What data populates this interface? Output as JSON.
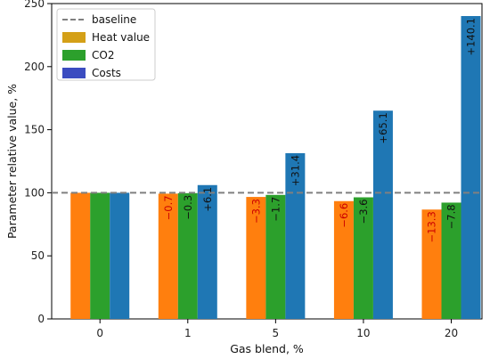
{
  "chart_data": {
    "type": "bar",
    "title": "",
    "xlabel": "Gas blend, %",
    "ylabel": "Parameter relative value, %",
    "categories": [
      "0",
      "1",
      "5",
      "10",
      "20"
    ],
    "ylim": [
      0,
      250
    ],
    "yticks": [
      0,
      50,
      100,
      150,
      200,
      250
    ],
    "grid": false,
    "legend_position": "top-left",
    "baseline": {
      "name": "baseline",
      "value": 100,
      "color": "#808080",
      "style": "dashed"
    },
    "series": [
      {
        "name": "Heat value",
        "color": "#ff7f0e",
        "legend_color": "#d4a017",
        "values": [
          100,
          99.3,
          96.7,
          93.4,
          86.7
        ],
        "labels": [
          "",
          "−0.7",
          "−3.3",
          "−6.6",
          "−13.3"
        ],
        "label_color": "#cc0000"
      },
      {
        "name": "CO2",
        "color": "#2ca02c",
        "legend_color": "#2ca02c",
        "values": [
          100,
          99.7,
          98.3,
          96.4,
          92.2
        ],
        "labels": [
          "",
          "−0.3",
          "−1.7",
          "−3.6",
          "−7.8"
        ],
        "label_color": "#111111"
      },
      {
        "name": "Costs",
        "color": "#1f77b4",
        "legend_color": "#3b4cc0",
        "values": [
          100,
          106.1,
          131.4,
          165.1,
          240.1
        ],
        "labels": [
          "",
          "+6.1",
          "+31.4",
          "+65.1",
          "+140.1"
        ],
        "label_color": "#111111"
      }
    ]
  }
}
